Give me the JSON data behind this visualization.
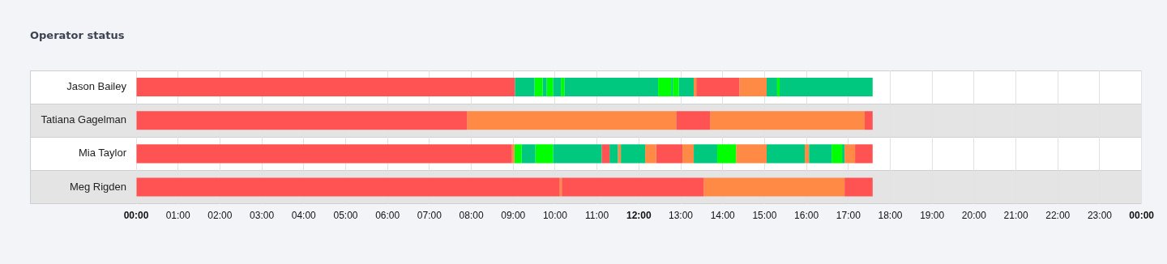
{
  "chart_data": {
    "type": "bar",
    "orientation": "horizontal",
    "stacked": true,
    "title": "Operator status",
    "categories": [
      "Jason Bailey",
      "Tatiana Gagelman",
      "Mia Taylor",
      "Meg Rigden"
    ],
    "xlim": [
      0,
      24
    ],
    "xticks": [
      {
        "value": 0,
        "label": "00:00"
      },
      {
        "value": 1,
        "label": "01:00"
      },
      {
        "value": 2,
        "label": "02:00"
      },
      {
        "value": 3,
        "label": "03:00"
      },
      {
        "value": 4,
        "label": "04:00"
      },
      {
        "value": 5,
        "label": "05:00"
      },
      {
        "value": 6,
        "label": "06:00"
      },
      {
        "value": 7,
        "label": "07:00"
      },
      {
        "value": 8,
        "label": "08:00"
      },
      {
        "value": 9,
        "label": "09:00"
      },
      {
        "value": 10,
        "label": "10:00"
      },
      {
        "value": 11,
        "label": "11:00"
      },
      {
        "value": 12,
        "label": "12:00"
      },
      {
        "value": 13,
        "label": "13:00"
      },
      {
        "value": 14,
        "label": "14:00"
      },
      {
        "value": 15,
        "label": "15:00"
      },
      {
        "value": 16,
        "label": "16:00"
      },
      {
        "value": 17,
        "label": "17:00"
      },
      {
        "value": 18,
        "label": "18:00"
      },
      {
        "value": 19,
        "label": "19:00"
      },
      {
        "value": 20,
        "label": "20:00"
      },
      {
        "value": 21,
        "label": "21:00"
      },
      {
        "value": 22,
        "label": "22:00"
      },
      {
        "value": 23,
        "label": "23:00"
      },
      {
        "value": 24,
        "label": "00:00"
      }
    ],
    "grid": "x",
    "legend": false,
    "series": [
      {
        "values": [
          9.04,
          7.9,
          8.97,
          10.11
        ],
        "colors": [
          "#ff5252",
          "#ff5252",
          "#ff5252",
          "#ff5252"
        ]
      },
      {
        "values": [
          0.47,
          4.99,
          0.06,
          0.05
        ],
        "colors": [
          "#00c87f",
          "#ff8a45",
          "#ff8a45",
          "#ff8a45"
        ]
      },
      {
        "values": [
          0.19,
          0.81,
          0.17,
          3.39
        ],
        "colors": [
          "#00ff00",
          "#ff5252",
          "#00ff00",
          "#ff5252"
        ]
      },
      {
        "values": [
          0.1,
          3.69,
          0.33,
          3.36
        ],
        "colors": [
          "#00c87f",
          "#ff8a45",
          "#00c87f",
          "#ff8a45"
        ]
      },
      {
        "values": [
          0.15,
          0.19,
          0.42,
          0.67
        ],
        "colors": [
          "#00ff00",
          "#ff5252",
          "#00ff00",
          "#ff5252"
        ]
      },
      {
        "values": [
          0.19,
          null,
          1.16,
          null
        ],
        "colors": [
          "#00c87f",
          null,
          "#00c87f",
          null
        ]
      },
      {
        "values": [
          0.08,
          null,
          0.19,
          null
        ],
        "colors": [
          "#00ff00",
          null,
          "#ff5252",
          null
        ]
      },
      {
        "values": [
          2.24,
          null,
          0.2,
          null
        ],
        "colors": [
          "#00c87f",
          null,
          "#00c87f",
          null
        ]
      },
      {
        "values": [
          0.31,
          null,
          0.07,
          null
        ],
        "colors": [
          "#00ff00",
          null,
          "#ff8a45",
          null
        ]
      },
      {
        "values": [
          0.04,
          null,
          0.58,
          null
        ],
        "colors": [
          "#00c87f",
          null,
          "#00c87f",
          null
        ]
      },
      {
        "values": [
          0.14,
          null,
          0.26,
          null
        ],
        "colors": [
          "#00ff00",
          null,
          "#ff8a45",
          null
        ]
      },
      {
        "values": [
          0.36,
          null,
          0.63,
          null
        ],
        "colors": [
          "#00c87f",
          null,
          "#ff5252",
          null
        ]
      },
      {
        "values": [
          0.06,
          null,
          0.27,
          null
        ],
        "colors": [
          "#ff8a45",
          null,
          "#ff8a45",
          null
        ]
      },
      {
        "values": [
          1.03,
          null,
          0.56,
          null
        ],
        "colors": [
          "#ff5252",
          null,
          "#00c87f",
          null
        ]
      },
      {
        "values": [
          0.65,
          null,
          0.45,
          null
        ],
        "colors": [
          "#ff8a45",
          null,
          "#00ff00",
          null
        ]
      },
      {
        "values": [
          0.25,
          null,
          0.73,
          null
        ],
        "colors": [
          "#00c87f",
          null,
          "#ff8a45",
          null
        ]
      },
      {
        "values": [
          0.06,
          null,
          0.91,
          null
        ],
        "colors": [
          "#00ff00",
          null,
          "#00c87f",
          null
        ]
      },
      {
        "values": [
          2.22,
          null,
          0.1,
          null
        ],
        "colors": [
          "#00c87f",
          null,
          "#ff8a45",
          null
        ]
      },
      {
        "values": [
          null,
          null,
          0.54,
          null
        ],
        "colors": [
          null,
          null,
          "#00c87f",
          null
        ]
      },
      {
        "values": [
          null,
          null,
          0.25,
          null
        ],
        "colors": [
          null,
          null,
          "#00ff00",
          null
        ]
      },
      {
        "values": [
          null,
          null,
          0.06,
          null
        ],
        "colors": [
          null,
          null,
          "#00c87f",
          null
        ]
      },
      {
        "values": [
          null,
          null,
          0.25,
          null
        ],
        "colors": [
          null,
          null,
          "#ff8a45",
          null
        ]
      },
      {
        "values": [
          null,
          null,
          0.42,
          null
        ],
        "colors": [
          null,
          null,
          "#ff5252",
          null
        ]
      }
    ]
  }
}
